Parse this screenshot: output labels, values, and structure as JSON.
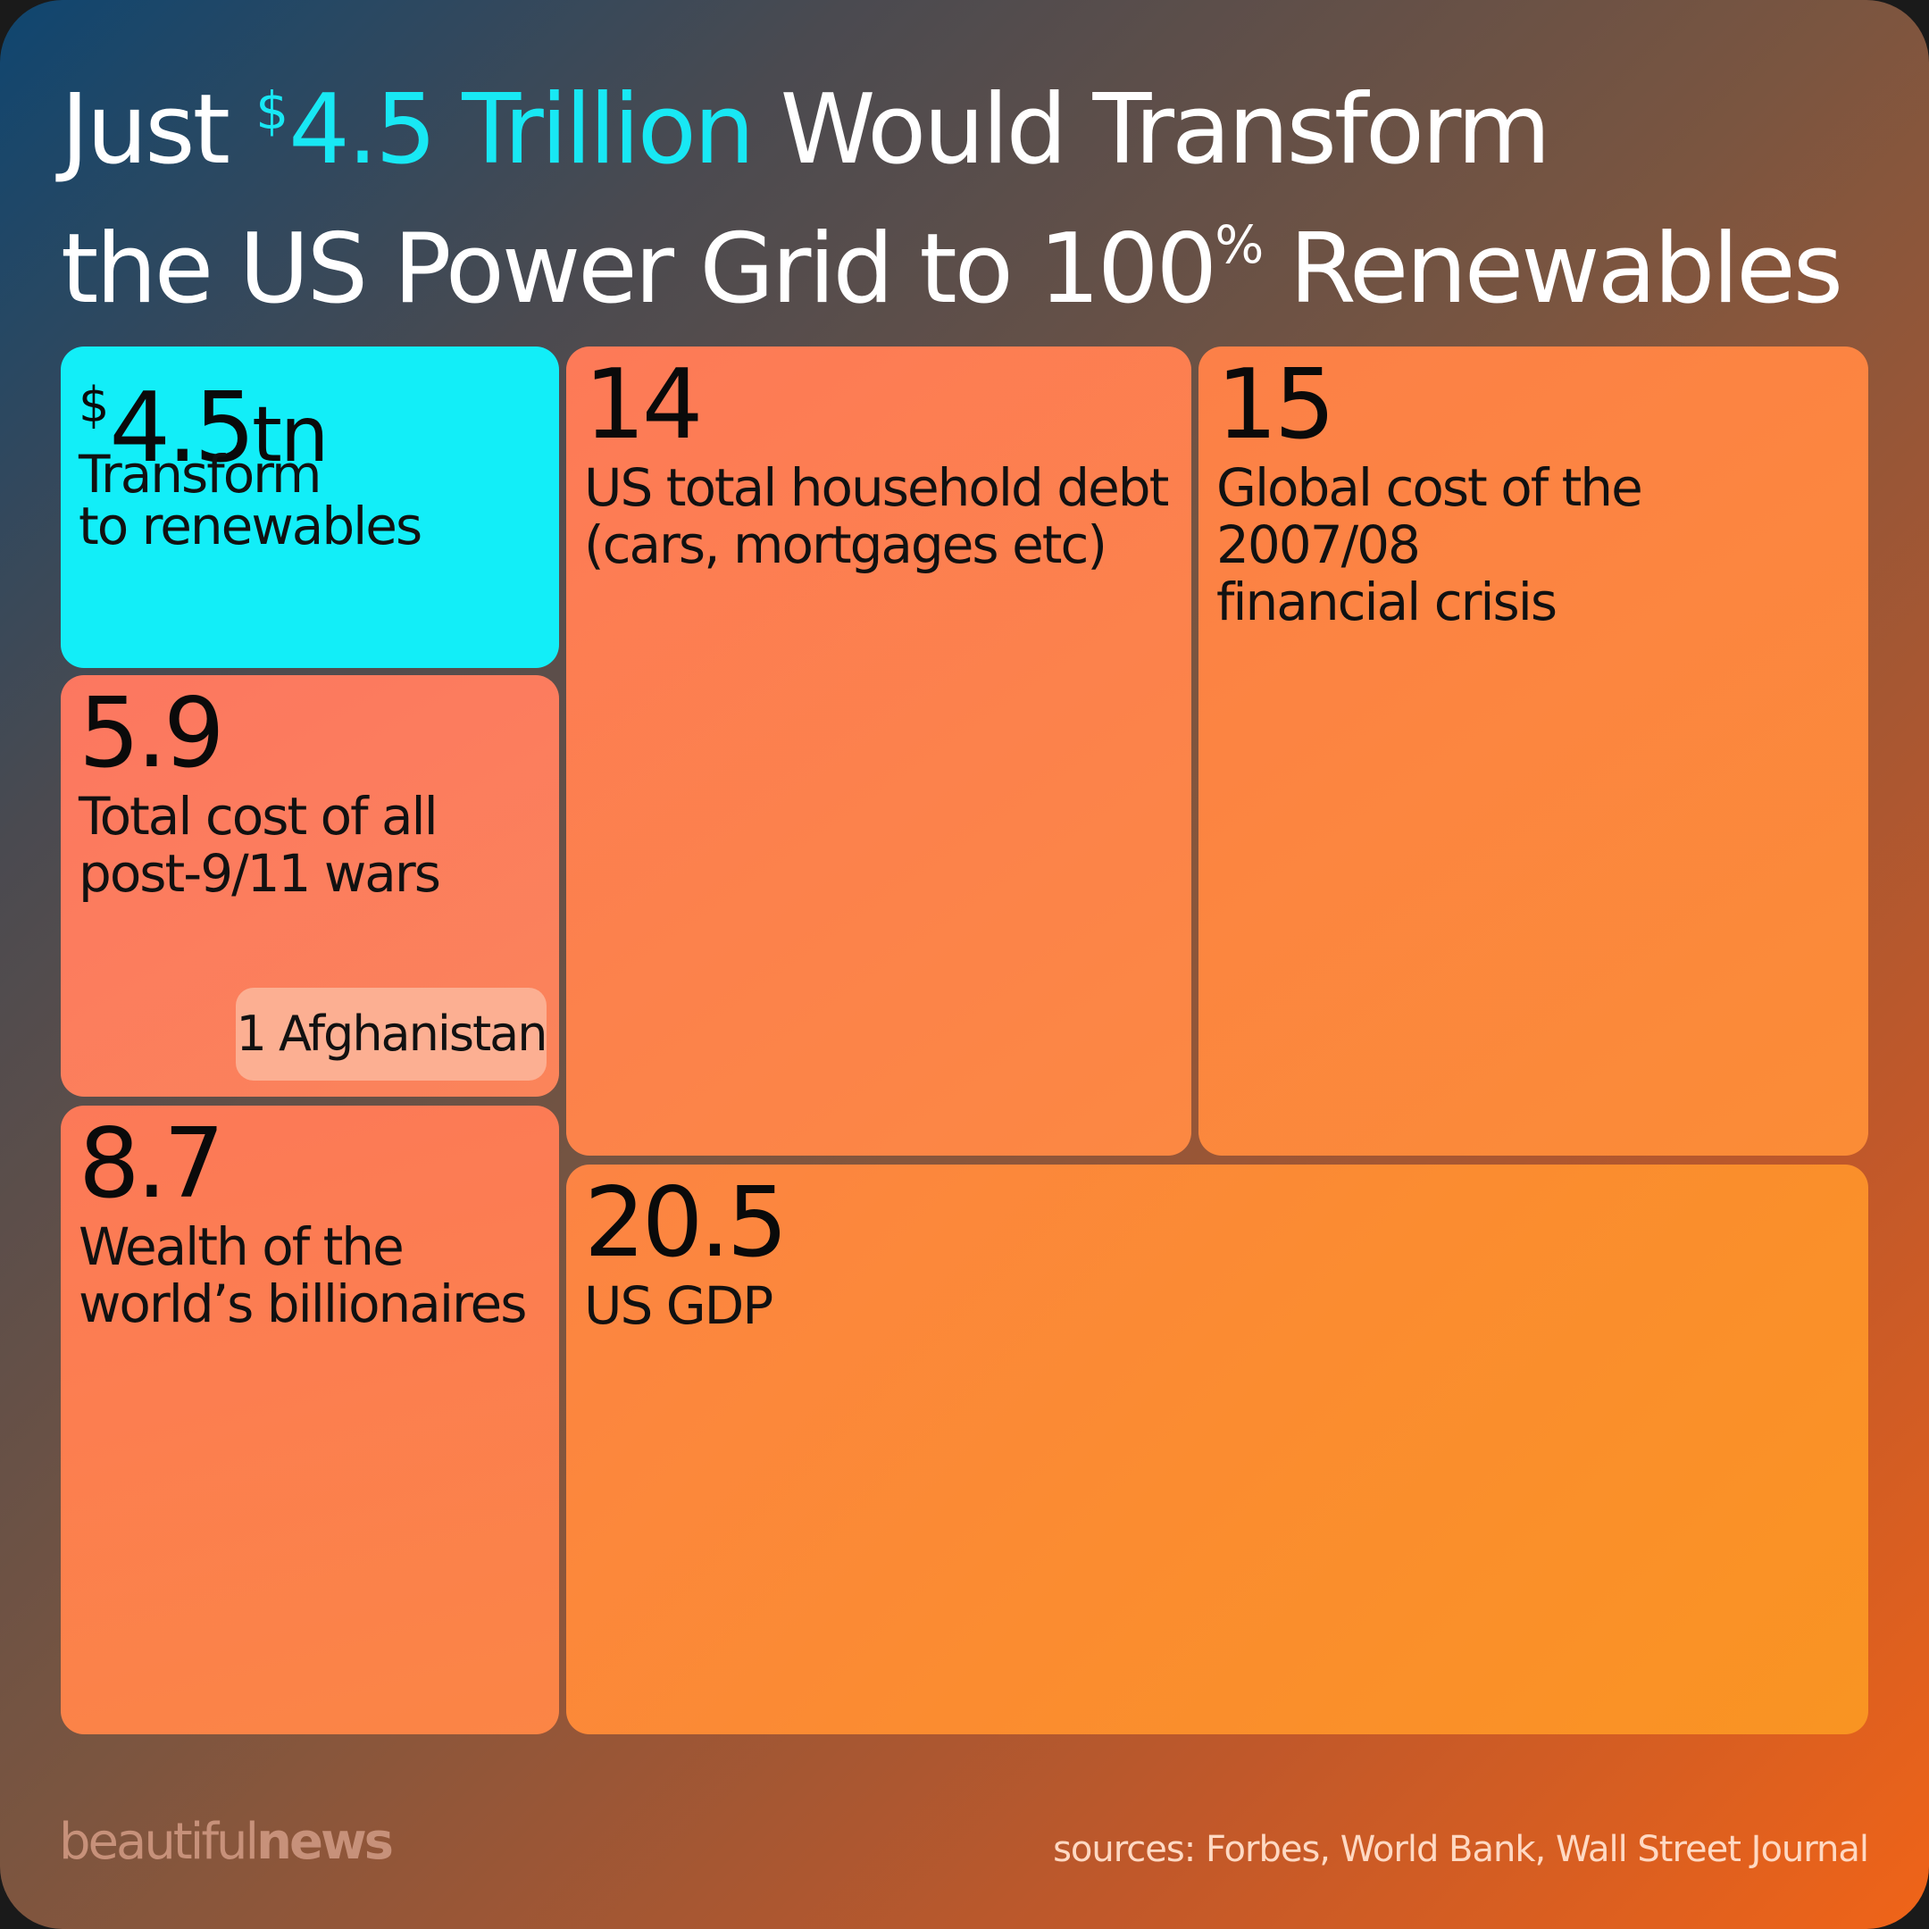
{
  "title": {
    "prefix": "Just ",
    "currency": "$",
    "highlight": "4.5 Trillion",
    "middle": " Would Transform",
    "line2": "the US Power Grid to 100",
    "percent": "%",
    "suffix": " Renewables"
  },
  "chart_data": {
    "type": "treemap",
    "unit_prefix": "$",
    "unit_suffix": "tn",
    "items": [
      {
        "key": "renew",
        "value": 4.5,
        "value_label": "4.5",
        "label_lines": [
          "Transform",
          "to renewables"
        ],
        "color": "#12eef8"
      },
      {
        "key": "wars",
        "value": 5.9,
        "value_label": "5.9",
        "label_lines": [
          "Total cost of all",
          "post-9/11 wars"
        ],
        "color": "#fc7b5c",
        "sub_item": {
          "value": 1,
          "label": "1 Afghanistan",
          "color": "#fcaf92"
        }
      },
      {
        "key": "billion",
        "value": 8.7,
        "value_label": "8.7",
        "label_lines": [
          "Wealth of the",
          "world’s billionaires"
        ],
        "color": "#fb8050"
      },
      {
        "key": "debt",
        "value": 14,
        "value_label": "14",
        "label_lines": [
          "US total household debt",
          "(cars, mortgages etc)"
        ],
        "color": "#fc8050"
      },
      {
        "key": "crisis",
        "value": 15,
        "value_label": "15",
        "label_lines": [
          "Global cost of the 2007/08",
          "financial crisis"
        ],
        "color": "#fb863c"
      },
      {
        "key": "gdp",
        "value": 20.5,
        "value_label": "20.5",
        "label_lines": [
          "US GDP"
        ],
        "color": "#fb8c30"
      }
    ]
  },
  "footer": {
    "brand_part1": "beautiful",
    "brand_part2": "news",
    "sources": "sources: Forbes, World Bank, Wall Street Journal"
  }
}
